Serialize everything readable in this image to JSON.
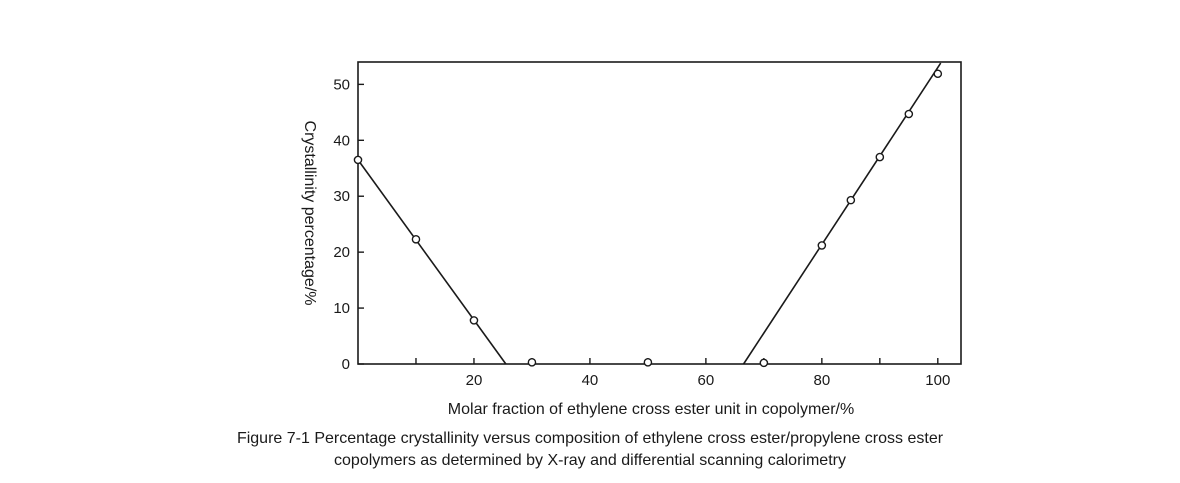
{
  "chart_data": {
    "type": "scatter",
    "xlabel": "Molar fraction of ethylene cross ester unit in copolymer/%",
    "ylabel": "Crystallinity percentage/%",
    "xlim": [
      0,
      104
    ],
    "ylim": [
      0,
      54
    ],
    "x_ticks": [
      20,
      40,
      60,
      80,
      100
    ],
    "x_minor_ticks": [
      10,
      30,
      50,
      70,
      90
    ],
    "y_ticks": [
      0,
      10,
      20,
      30,
      40,
      50
    ],
    "grid": false,
    "series": [
      {
        "points": [
          {
            "x": 0,
            "y": 36.5
          },
          {
            "x": 10,
            "y": 22.3
          },
          {
            "x": 20,
            "y": 7.8
          },
          {
            "x": 30,
            "y": 0.3
          },
          {
            "x": 50,
            "y": 0.3
          },
          {
            "x": 70,
            "y": 0.2
          },
          {
            "x": 80,
            "y": 21.2
          },
          {
            "x": 85,
            "y": 29.3
          },
          {
            "x": 90,
            "y": 37.0
          },
          {
            "x": 95,
            "y": 44.7
          },
          {
            "x": 100,
            "y": 51.9
          }
        ]
      }
    ],
    "fit_lines": [
      {
        "x": [
          0,
          25.5
        ],
        "y": [
          36.5,
          0
        ]
      },
      {
        "x": [
          66.5,
          100.5
        ],
        "y": [
          0,
          53.8
        ]
      }
    ]
  },
  "caption": {
    "line1": "Figure 7-1 Percentage crystallinity versus composition of ethylene cross ester/propylene cross ester",
    "line2": "copolymers as determined by X-ray and differential scanning calorimetry"
  }
}
